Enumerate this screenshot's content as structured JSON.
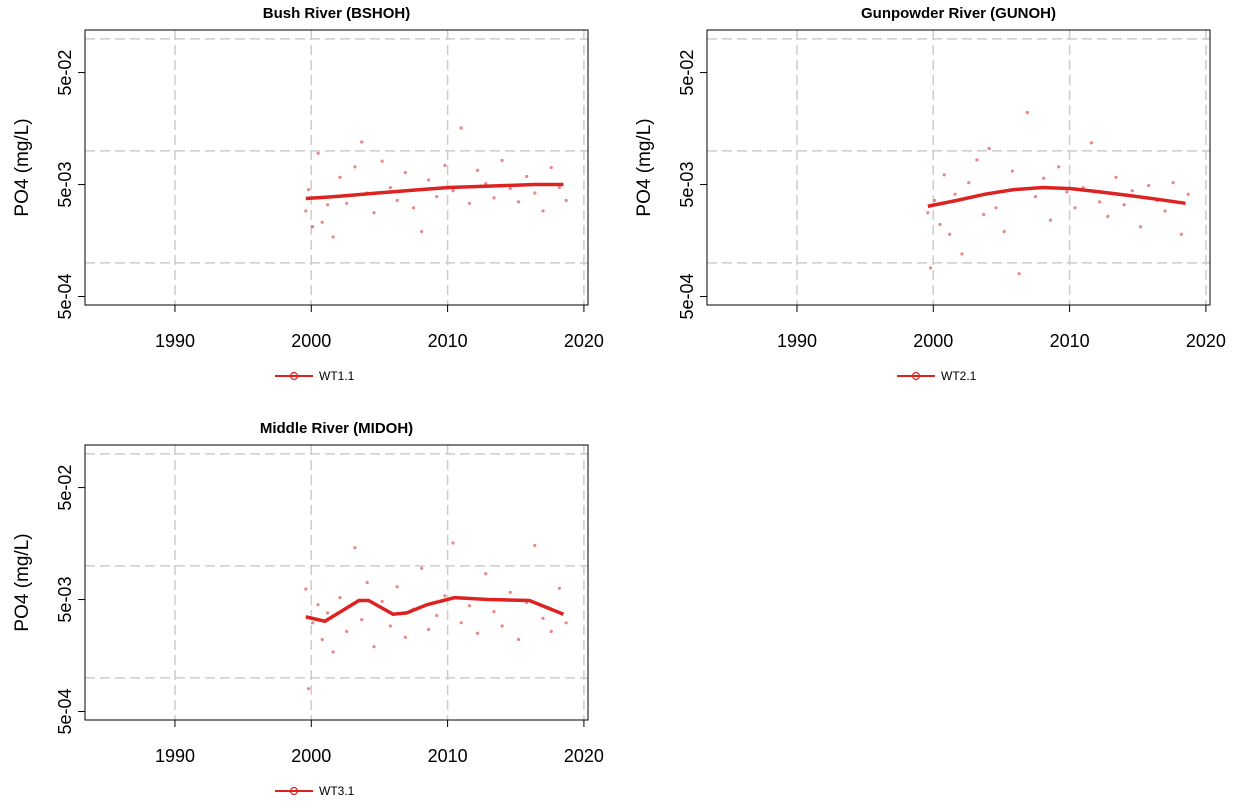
{
  "chart_data": [
    {
      "type": "scatter",
      "title": "Bush River (BSHOH)",
      "y_label": "PO4 (mg/L)",
      "log_y": true,
      "xlim": [
        1983.4,
        2020.3
      ],
      "xticks": [
        1990,
        2000,
        2010,
        2020
      ],
      "ylim": [
        0.00042,
        0.12
      ],
      "yticks": [
        {
          "value": 0.0005,
          "label": "5e-04"
        },
        {
          "value": 0.005,
          "label": "5e-03"
        },
        {
          "value": 0.05,
          "label": "5e-02"
        }
      ],
      "ygrid": [
        0.001,
        0.01,
        0.1
      ],
      "xgrid": [
        1990,
        2000,
        2010,
        2020
      ],
      "series": [
        {
          "name": "WT1.1",
          "color": "#dd2222",
          "x": [
            1999.6,
            1999.8,
            2000.1,
            2000.5,
            2000.8,
            2001.2,
            2001.6,
            2002.1,
            2002.6,
            2003.2,
            2003.7,
            2004.1,
            2004.6,
            2005.2,
            2005.8,
            2006.3,
            2006.9,
            2007.5,
            2008.1,
            2008.6,
            2009.2,
            2009.8,
            2010.4,
            2011.0,
            2011.6,
            2012.2,
            2012.8,
            2013.4,
            2014.0,
            2014.6,
            2015.2,
            2015.8,
            2016.4,
            2017.0,
            2017.6,
            2018.2,
            2018.7
          ],
          "values": [
            0.0029,
            0.0045,
            0.0021,
            0.0095,
            0.0023,
            0.0033,
            0.0017,
            0.0058,
            0.0034,
            0.0072,
            0.012,
            0.0042,
            0.0028,
            0.0081,
            0.0047,
            0.0036,
            0.0064,
            0.0031,
            0.0019,
            0.0055,
            0.0039,
            0.0074,
            0.0044,
            0.016,
            0.0034,
            0.0067,
            0.0051,
            0.0038,
            0.0082,
            0.0046,
            0.0035,
            0.0059,
            0.0042,
            0.0029,
            0.0071,
            0.0047,
            0.0036
          ],
          "trend_x": [
            1999.6,
            2001.7,
            2003.8,
            2005.9,
            2008.0,
            2010.1,
            2012.2,
            2014.3,
            2016.4,
            2018.5
          ],
          "trend_values": [
            0.00375,
            0.0039,
            0.0041,
            0.0043,
            0.0045,
            0.0047,
            0.0048,
            0.0049,
            0.005,
            0.005
          ]
        }
      ]
    },
    {
      "type": "scatter",
      "title": "Gunpowder River (GUNOH)",
      "y_label": "PO4 (mg/L)",
      "log_y": true,
      "xlim": [
        1983.4,
        2020.3
      ],
      "xticks": [
        1990,
        2000,
        2010,
        2020
      ],
      "ylim": [
        0.00042,
        0.12
      ],
      "yticks": [
        {
          "value": 0.0005,
          "label": "5e-04"
        },
        {
          "value": 0.005,
          "label": "5e-03"
        },
        {
          "value": 0.05,
          "label": "5e-02"
        }
      ],
      "ygrid": [
        0.001,
        0.01,
        0.1
      ],
      "xgrid": [
        1990,
        2000,
        2010,
        2020
      ],
      "series": [
        {
          "name": "WT2.1",
          "color": "#dd2222",
          "x": [
            1999.6,
            1999.8,
            2000.1,
            2000.5,
            2000.8,
            2001.2,
            2001.6,
            2002.1,
            2002.6,
            2003.2,
            2003.7,
            2004.1,
            2004.6,
            2005.2,
            2005.8,
            2006.3,
            2006.9,
            2007.5,
            2008.1,
            2008.6,
            2009.2,
            2009.8,
            2010.4,
            2011.0,
            2011.6,
            2012.2,
            2012.8,
            2013.4,
            2014.0,
            2014.6,
            2015.2,
            2015.8,
            2016.4,
            2017.0,
            2017.6,
            2018.2,
            2018.7
          ],
          "values": [
            0.0028,
            0.0009,
            0.0036,
            0.0022,
            0.0061,
            0.0018,
            0.0041,
            0.0012,
            0.0052,
            0.0083,
            0.0027,
            0.0105,
            0.0031,
            0.0019,
            0.0066,
            0.0008,
            0.022,
            0.0039,
            0.0057,
            0.0024,
            0.0072,
            0.0043,
            0.0031,
            0.0047,
            0.0118,
            0.0035,
            0.0026,
            0.0058,
            0.0033,
            0.0044,
            0.0021,
            0.0049,
            0.0036,
            0.0029,
            0.0052,
            0.0018,
            0.0041
          ],
          "trend_x": [
            1999.6,
            2001.7,
            2003.8,
            2005.9,
            2008.0,
            2010.1,
            2012.2,
            2014.3,
            2016.4,
            2018.5
          ],
          "trend_values": [
            0.0032,
            0.0036,
            0.0041,
            0.0045,
            0.0047,
            0.0046,
            0.0043,
            0.004,
            0.0037,
            0.0034
          ]
        }
      ]
    },
    {
      "type": "scatter",
      "title": "Middle River (MIDOH)",
      "y_label": "PO4 (mg/L)",
      "log_y": true,
      "xlim": [
        1983.4,
        2020.3
      ],
      "xticks": [
        1990,
        2000,
        2010,
        2020
      ],
      "ylim": [
        0.00042,
        0.12
      ],
      "yticks": [
        {
          "value": 0.0005,
          "label": "5e-04"
        },
        {
          "value": 0.005,
          "label": "5e-03"
        },
        {
          "value": 0.05,
          "label": "5e-02"
        }
      ],
      "ygrid": [
        0.001,
        0.01,
        0.1
      ],
      "xgrid": [
        1990,
        2000,
        2010,
        2020
      ],
      "series": [
        {
          "name": "WT3.1",
          "color": "#dd2222",
          "x": [
            1999.6,
            1999.8,
            2000.1,
            2000.5,
            2000.8,
            2001.2,
            2001.6,
            2002.1,
            2002.6,
            2003.2,
            2003.7,
            2004.1,
            2004.6,
            2005.2,
            2005.8,
            2006.3,
            2006.9,
            2007.5,
            2008.1,
            2008.6,
            2009.2,
            2009.8,
            2010.4,
            2011.0,
            2011.6,
            2012.2,
            2012.8,
            2013.4,
            2014.0,
            2014.6,
            2015.2,
            2015.8,
            2016.4,
            2017.0,
            2017.6,
            2018.2,
            2018.7
          ],
          "values": [
            0.0062,
            0.0008,
            0.0031,
            0.0045,
            0.0022,
            0.0038,
            0.0017,
            0.0052,
            0.0026,
            0.0145,
            0.0033,
            0.0071,
            0.0019,
            0.0048,
            0.0029,
            0.0065,
            0.0023,
            0.0041,
            0.0095,
            0.0027,
            0.0036,
            0.0054,
            0.016,
            0.0031,
            0.0044,
            0.0025,
            0.0085,
            0.0039,
            0.0029,
            0.0058,
            0.0022,
            0.0047,
            0.0152,
            0.0034,
            0.0026,
            0.0063,
            0.0031
          ],
          "trend_x": [
            1999.6,
            2001.0,
            2003.5,
            2004.2,
            2006.0,
            2007.0,
            2008.5,
            2010.5,
            2013.0,
            2016.0,
            2018.5
          ],
          "trend_values": [
            0.0035,
            0.0032,
            0.0049,
            0.0049,
            0.0037,
            0.0038,
            0.0045,
            0.0052,
            0.005,
            0.0049,
            0.0037
          ]
        }
      ]
    }
  ]
}
